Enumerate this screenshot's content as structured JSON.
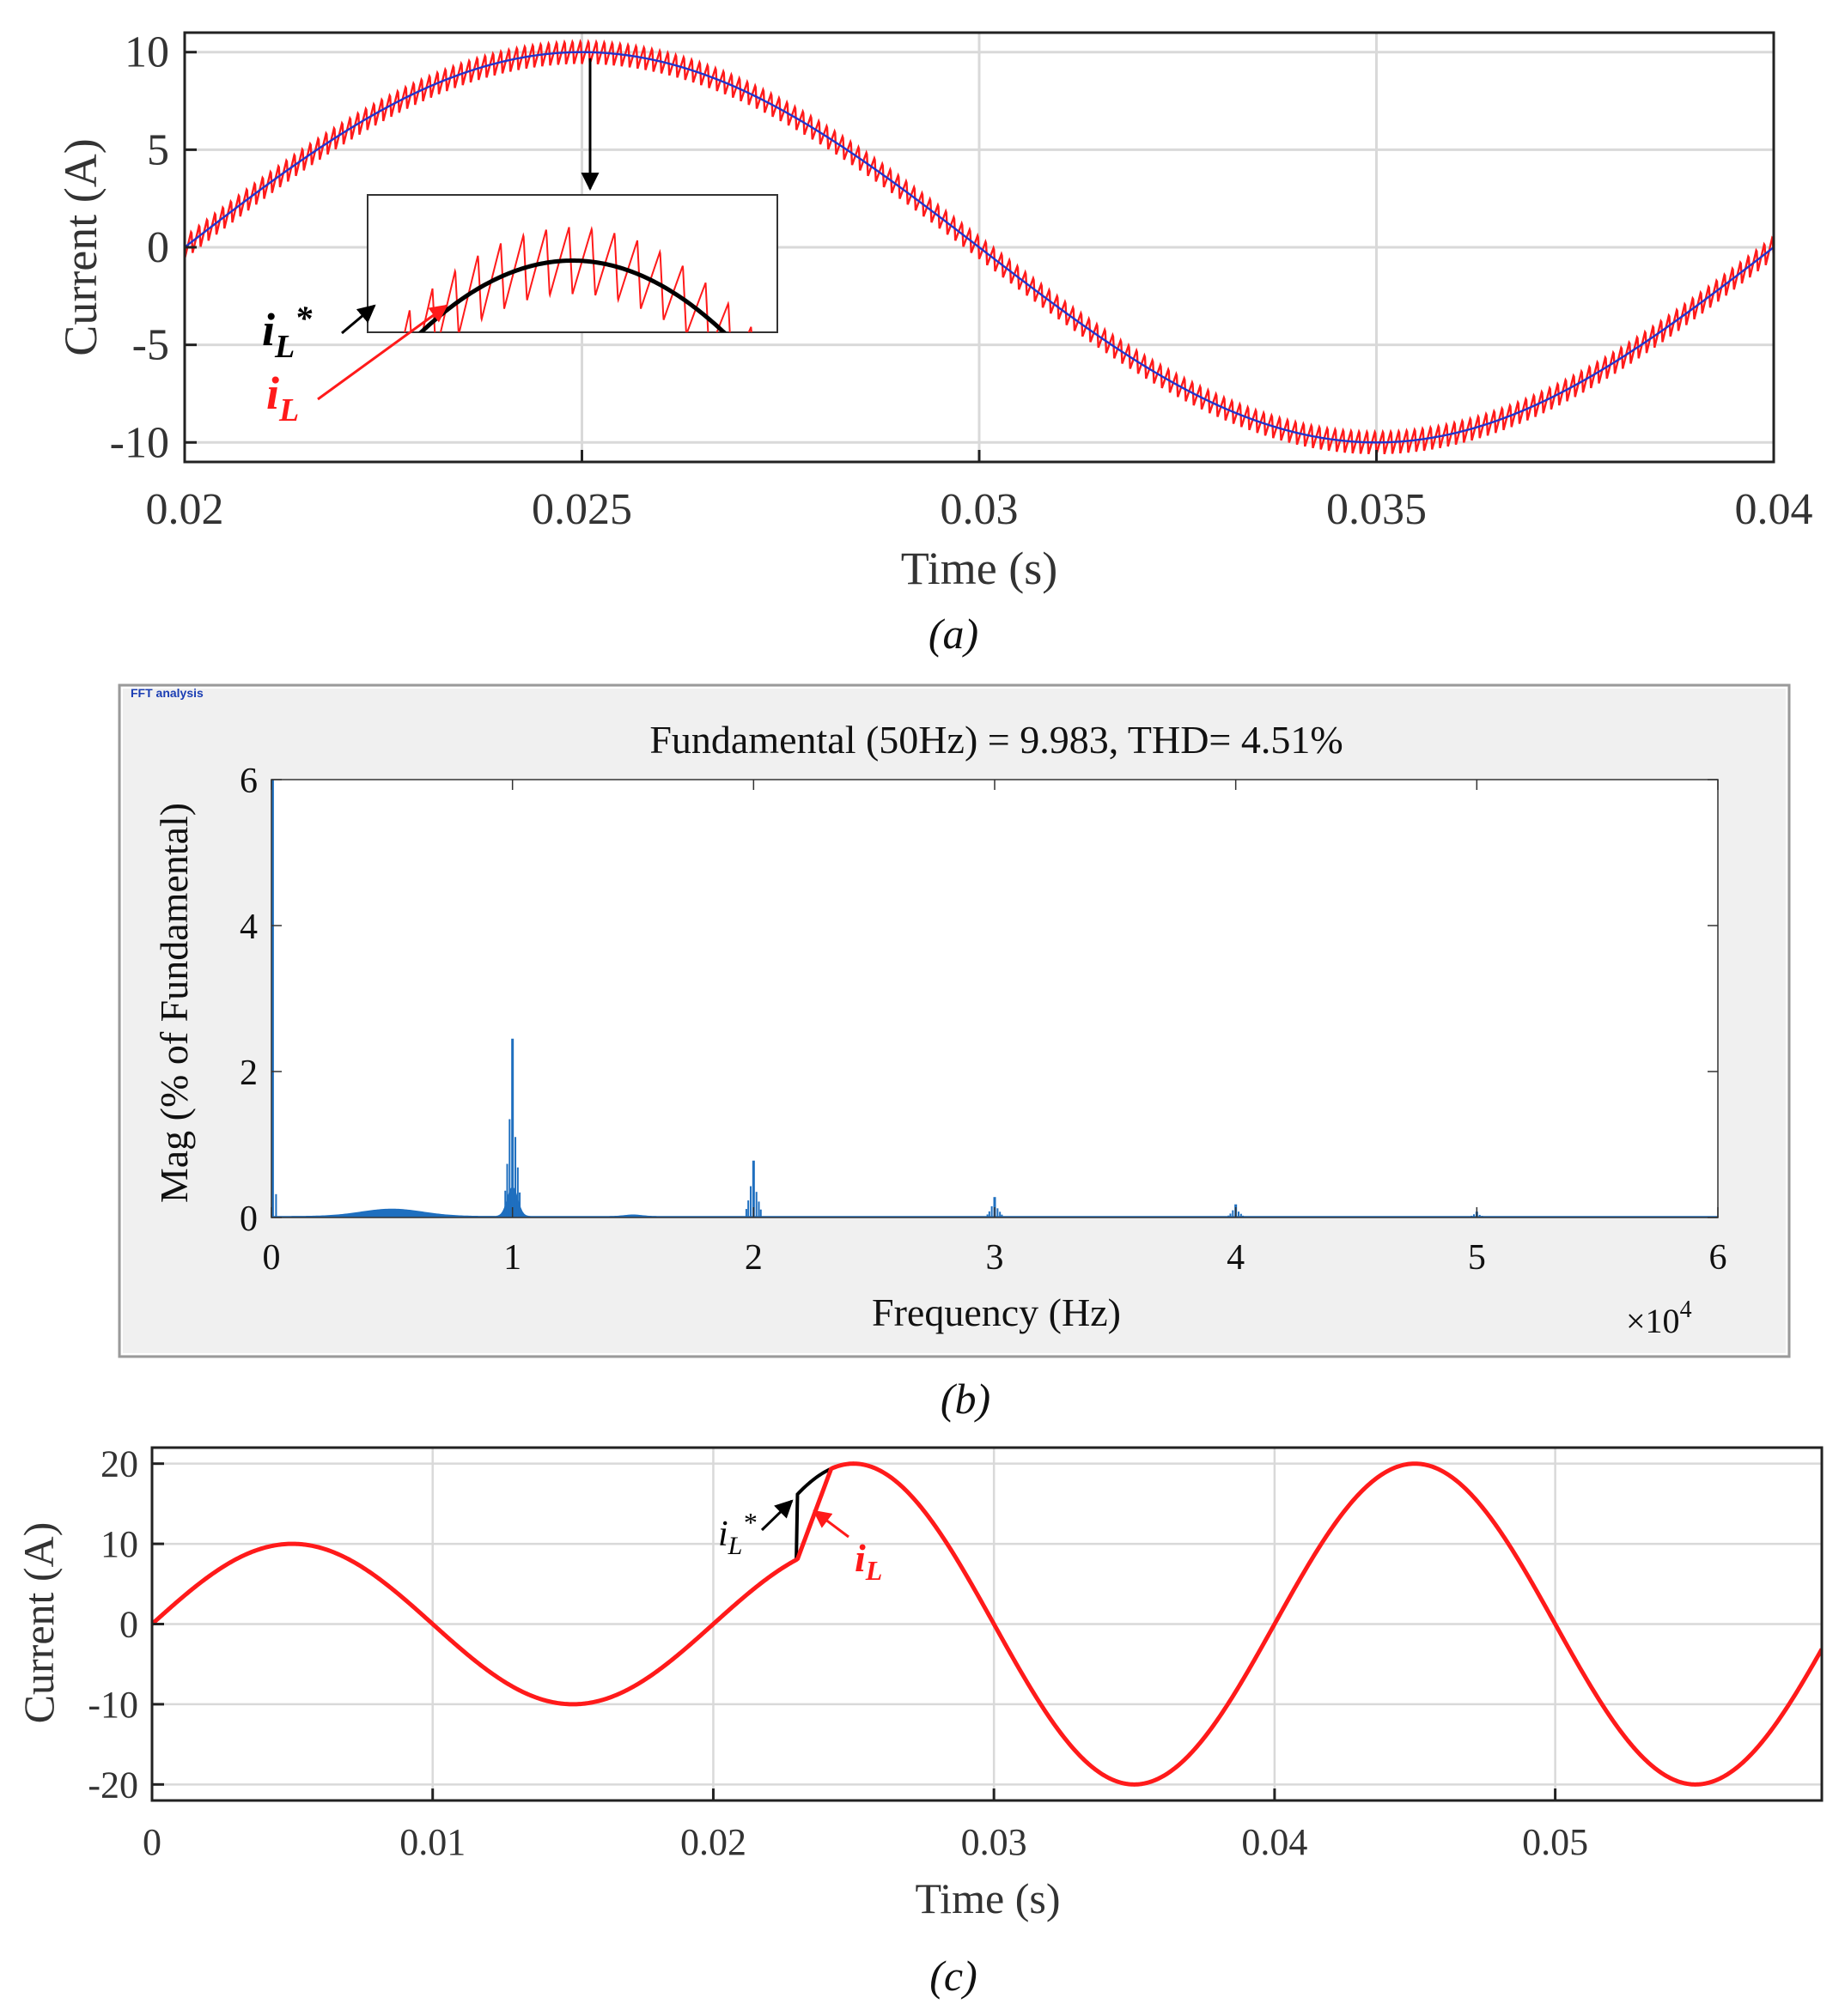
{
  "colors": {
    "red": "#ff1a1a",
    "black": "#000000",
    "blue": "#2233cc",
    "fft_blue": "#1f6fbf",
    "grid": "#d9d9d9",
    "panel_bg": "#f0f0f0"
  },
  "chart_data": [
    {
      "id": "a",
      "type": "line",
      "caption": "(a)",
      "xlabel": "Time (s)",
      "ylabel": "Current (A)",
      "xlim": [
        0.02,
        0.04
      ],
      "ylim": [
        -11,
        11
      ],
      "xticks": [
        0.02,
        0.025,
        0.03,
        0.035,
        0.04
      ],
      "xtick_labels": [
        "0.02",
        "0.025",
        "0.03",
        "0.035",
        "0.04"
      ],
      "yticks": [
        10,
        5,
        0,
        -5,
        -10
      ],
      "ytick_labels": [
        "10",
        "5",
        "0",
        "-5",
        "-10"
      ],
      "grid": true,
      "series": [
        {
          "name": "iL*",
          "role": "reference",
          "amplitude": 10,
          "frequency_hz": 50,
          "color": "blue"
        },
        {
          "name": "iL",
          "role": "measured",
          "amplitude": 10,
          "frequency_hz": 50,
          "ripple_amplitude": 0.6,
          "color": "red"
        }
      ],
      "inset": {
        "x_range": [
          0.0235,
          0.0265
        ],
        "y_range": [
          9.4,
          10.55
        ]
      },
      "annotations": [
        {
          "main": "i",
          "sub": "L",
          "sup": "*",
          "color": "black"
        },
        {
          "main": "i",
          "sub": "L",
          "sup": "",
          "color": "red"
        }
      ]
    },
    {
      "id": "b",
      "type": "bar",
      "caption": "(b)",
      "window_label": "FFT analysis",
      "title": "Fundamental (50Hz) = 9.983, THD= 4.51%",
      "xlabel": "Frequency (Hz)",
      "ylabel": "Mag (% of Fundamental)",
      "x_multiplier": "×10",
      "x_multiplier_exp": "4",
      "xlim": [
        0,
        6
      ],
      "ylim": [
        0,
        6
      ],
      "xticks": [
        0,
        1,
        2,
        3,
        4,
        5,
        6
      ],
      "xtick_labels": [
        "0",
        "1",
        "2",
        "3",
        "4",
        "5",
        "6"
      ],
      "yticks": [
        0,
        2,
        4,
        6
      ],
      "ytick_labels": [
        "0",
        "2",
        "4",
        "6"
      ],
      "peaks": [
        {
          "x": 0.005,
          "value": 6
        },
        {
          "x": 1.0,
          "value": 2.45
        },
        {
          "x": 2.0,
          "value": 0.78
        },
        {
          "x": 3.0,
          "value": 0.28
        },
        {
          "x": 4.0,
          "value": 0.18
        },
        {
          "x": 5.0,
          "value": 0.08
        }
      ],
      "hump": {
        "center": 0.5,
        "value": 0.1
      }
    },
    {
      "id": "c",
      "type": "line",
      "caption": "(c)",
      "xlabel": "Time (s)",
      "ylabel": "Current (A)",
      "xlim": [
        0,
        0.0595
      ],
      "ylim": [
        -22,
        22
      ],
      "xticks": [
        0,
        0.01,
        0.02,
        0.03,
        0.04,
        0.05
      ],
      "xtick_labels": [
        "0",
        "0.01",
        "0.02",
        "0.03",
        "0.04",
        "0.05"
      ],
      "yticks": [
        20,
        10,
        0,
        -10,
        -20
      ],
      "ytick_labels": [
        "20",
        "10",
        "0",
        "-10",
        "-20"
      ],
      "grid": true,
      "step_time": 0.023,
      "amplitude_before": 10,
      "amplitude_after": 20,
      "frequency_hz": 50,
      "series": [
        {
          "name": "iL*",
          "role": "reference",
          "color": "black"
        },
        {
          "name": "iL",
          "role": "measured",
          "color": "red"
        }
      ],
      "annotations": [
        {
          "main": "i",
          "sub": "L",
          "sup": "*",
          "color": "black"
        },
        {
          "main": "i",
          "sub": "L",
          "sup": "",
          "color": "red"
        }
      ]
    }
  ]
}
